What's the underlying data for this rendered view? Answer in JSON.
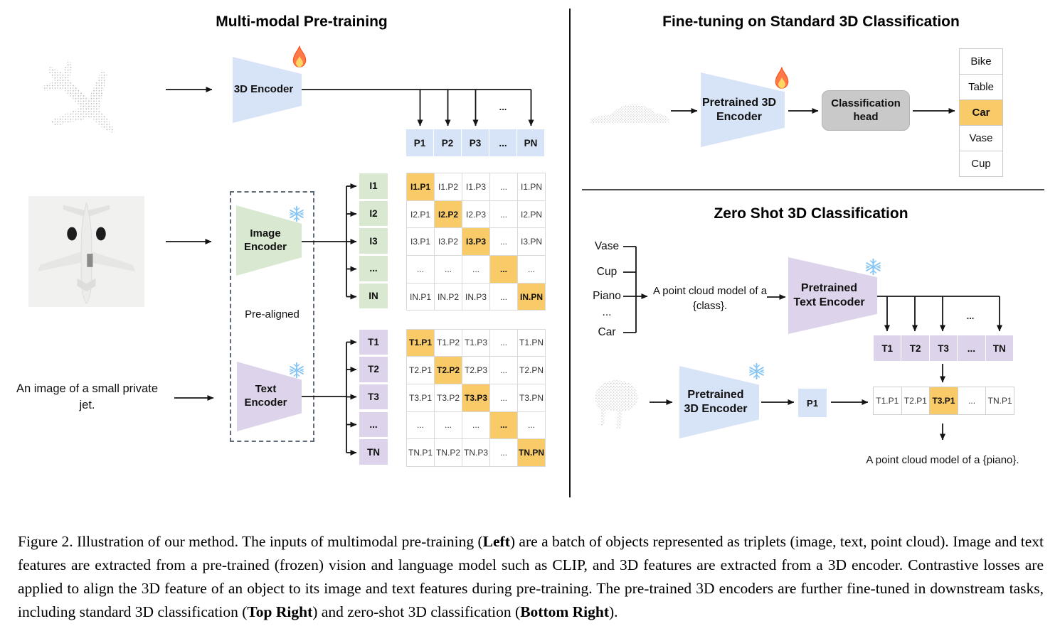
{
  "pretraining": {
    "title": "Multi-modal Pre-training",
    "inputs": {
      "text": "An image of a small private jet."
    },
    "encoder_3d": {
      "label": "3D Encoder",
      "icon": "fire"
    },
    "image_encoder": {
      "label": "Image Encoder",
      "icon": "snowflake"
    },
    "text_encoder": {
      "label": "Text Encoder",
      "icon": "snowflake"
    },
    "prealigned_label": "Pre-aligned",
    "arrow_ellipsis": "...",
    "p_header": [
      "P1",
      "P2",
      "P3",
      "...",
      "PN"
    ],
    "image_rows": [
      "I1",
      "I2",
      "I3",
      "...",
      "IN"
    ],
    "image_matrix": [
      [
        "I1.P1",
        "I1.P2",
        "I1.P3",
        "...",
        "I1.PN"
      ],
      [
        "I2.P1",
        "I2.P2",
        "I2.P3",
        "...",
        "I2.PN"
      ],
      [
        "I3.P1",
        "I3.P2",
        "I3.P3",
        "...",
        "I3.PN"
      ],
      [
        "...",
        "...",
        "...",
        "...",
        "..."
      ],
      [
        "IN.P1",
        "IN.P2",
        "IN.P3",
        "...",
        "IN.PN"
      ]
    ],
    "text_rows": [
      "T1",
      "T2",
      "T3",
      "...",
      "TN"
    ],
    "text_matrix": [
      [
        "T1.P1",
        "T1.P2",
        "T1.P3",
        "...",
        "T1.PN"
      ],
      [
        "T2.P1",
        "T2.P2",
        "T2.P3",
        "...",
        "T2.PN"
      ],
      [
        "T3.P1",
        "T3.P2",
        "T3.P3",
        "...",
        "T3.PN"
      ],
      [
        "...",
        "...",
        "...",
        "...",
        "..."
      ],
      [
        "TN.P1",
        "TN.P2",
        "TN.P3",
        "...",
        "TN.PN"
      ]
    ]
  },
  "finetuning": {
    "title": "Fine-tuning on Standard 3D Classification",
    "encoder": {
      "label": "Pretrained 3D Encoder",
      "icon": "fire"
    },
    "head_label": "Classification head",
    "classes": [
      "Bike",
      "Table",
      "Car",
      "Vase",
      "Cup"
    ],
    "predicted_class": "Car"
  },
  "zeroshot": {
    "title": "Zero Shot 3D Classification",
    "classes": [
      "Vase",
      "Cup",
      "Piano",
      "...",
      "Car"
    ],
    "prompt": "A point cloud model of a {class}.",
    "text_encoder": {
      "label": "Pretrained Text Encoder",
      "icon": "snowflake"
    },
    "encoder_3d": {
      "label": "Pretrained 3D Encoder",
      "icon": "snowflake"
    },
    "arrow_ellipsis": "...",
    "t_header": [
      "T1",
      "T2",
      "T3",
      "...",
      "TN"
    ],
    "p_cell": "P1",
    "similarity_row": [
      "T1.P1",
      "T2.P1",
      "T3.P1",
      "...",
      "TN.P1"
    ],
    "matched_cell": "T3.P1",
    "result": "A point cloud model of a {piano}."
  },
  "caption": {
    "segments": [
      {
        "text": "Figure 2. Illustration of our method. The inputs of multimodal pre-training (",
        "bold": false
      },
      {
        "text": "Left",
        "bold": true
      },
      {
        "text": ") are a batch of objects represented as triplets (image, text, point cloud). Image and text features are extracted from a pre-trained (frozen) vision and language model such as CLIP, and 3D features are extracted from a 3D encoder. Contrastive losses are applied to align the 3D feature of an object to its image and text features during pre-training. The pre-trained 3D encoders are further fine-tuned in downstream tasks, including standard 3D classification (",
        "bold": false
      },
      {
        "text": "Top Right",
        "bold": true
      },
      {
        "text": ") and zero-shot 3D classification (",
        "bold": false
      },
      {
        "text": "Bottom Right",
        "bold": true
      },
      {
        "text": ").",
        "bold": false
      }
    ]
  },
  "icons": {
    "fire": "🔥",
    "snowflake": "❄"
  },
  "colors": {
    "blue": "#d7e3f6",
    "green": "#d9e8d1",
    "purple": "#ddd3ea",
    "highlight": "#f9ca68",
    "head_gray": "#c9c9c9",
    "matrix_border": "#d9d9d9",
    "list_border": "#c9c9c9"
  }
}
